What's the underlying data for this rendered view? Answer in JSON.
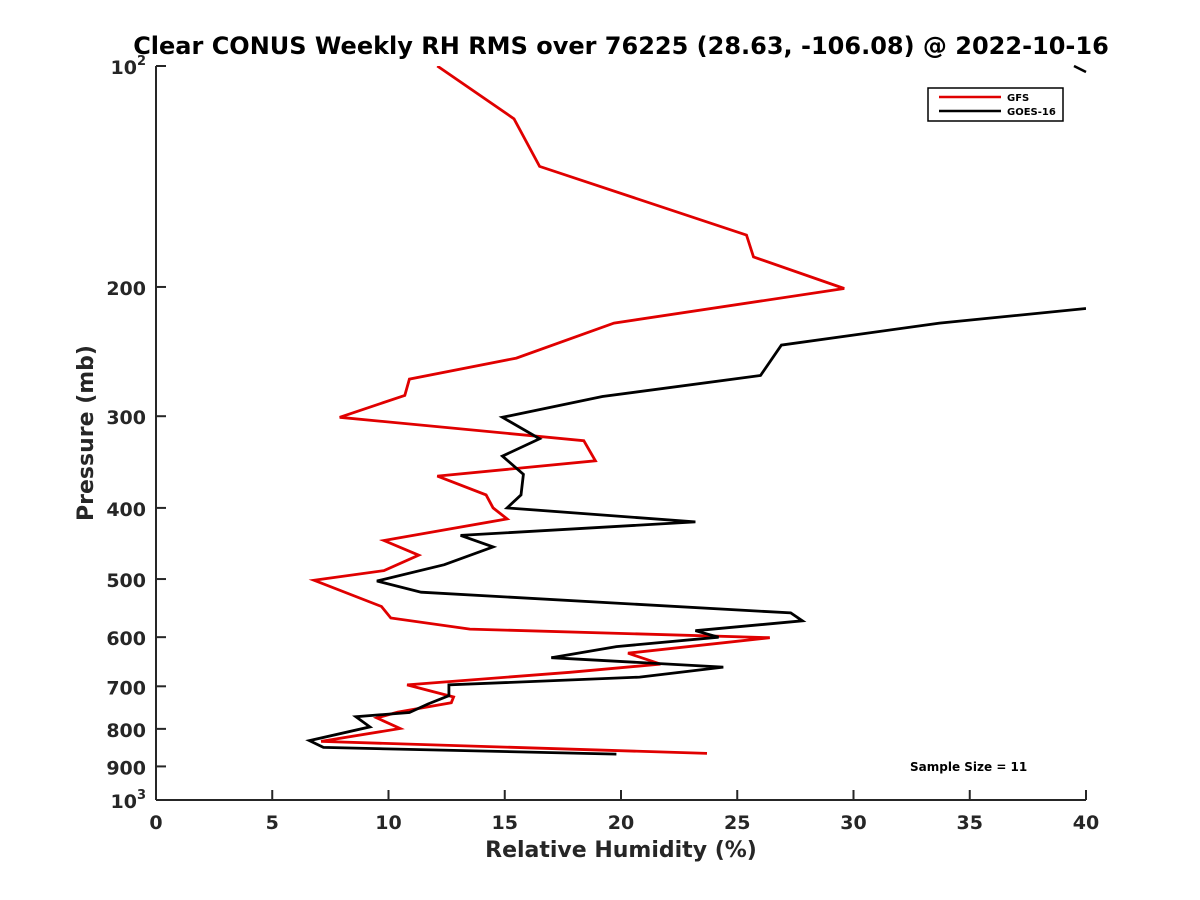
{
  "chart_data": {
    "type": "line",
    "title": "Clear CONUS Weekly RH RMS over 76225 (28.63, -106.08) @ 2022-10-16",
    "xlabel": "Relative Humidity (%)",
    "ylabel": "Pressure (mb)",
    "xlim": [
      0,
      40
    ],
    "ylim": [
      100,
      1000
    ],
    "y_scale": "log",
    "y_reversed": true,
    "x_ticks": [
      0,
      5,
      10,
      15,
      20,
      25,
      30,
      35,
      40
    ],
    "x_tick_labels": [
      "0",
      "5",
      "10",
      "15",
      "20",
      "25",
      "30",
      "35",
      "40"
    ],
    "y_ticks": [
      100,
      200,
      300,
      400,
      500,
      600,
      700,
      800,
      900,
      1000
    ],
    "y_tick_labels": [
      {
        "base": "10",
        "exp": "2"
      },
      {
        "base": "200",
        "exp": ""
      },
      {
        "base": "300",
        "exp": ""
      },
      {
        "base": "400",
        "exp": ""
      },
      {
        "base": "500",
        "exp": ""
      },
      {
        "base": "600",
        "exp": ""
      },
      {
        "base": "700",
        "exp": ""
      },
      {
        "base": "800",
        "exp": ""
      },
      {
        "base": "900",
        "exp": ""
      },
      {
        "base": "10",
        "exp": "3"
      }
    ],
    "grid": false,
    "legend_position": "top-right",
    "series": [
      {
        "name": "GFS",
        "color": "#e00000",
        "points": [
          [
            12.1,
            100
          ],
          [
            15.4,
            118
          ],
          [
            16.5,
            137
          ],
          [
            25.4,
            170
          ],
          [
            25.7,
            182
          ],
          [
            29.6,
            201
          ],
          [
            19.7,
            224
          ],
          [
            15.5,
            250
          ],
          [
            10.9,
            267
          ],
          [
            10.7,
            281
          ],
          [
            7.9,
            301
          ],
          [
            18.4,
            324
          ],
          [
            18.9,
            345
          ],
          [
            12.1,
            362
          ],
          [
            14.2,
            384
          ],
          [
            14.5,
            400
          ],
          [
            15.1,
            414
          ],
          [
            9.8,
            443
          ],
          [
            11.3,
            464
          ],
          [
            9.8,
            487
          ],
          [
            6.8,
            502
          ],
          [
            9.7,
            545
          ],
          [
            10.1,
            565
          ],
          [
            13.5,
            585
          ],
          [
            26.4,
            601
          ],
          [
            20.3,
            631
          ],
          [
            21.7,
            653
          ],
          [
            17.8,
            670
          ],
          [
            10.8,
            697
          ],
          [
            12.8,
            724
          ],
          [
            12.7,
            737
          ],
          [
            10.4,
            759
          ],
          [
            9.5,
            773
          ],
          [
            10.5,
            799
          ],
          [
            7.1,
            832
          ],
          [
            23.7,
            864
          ]
        ]
      },
      {
        "name": "GOES-16",
        "color": "#000000",
        "points": [
          [
            40.0,
            214
          ],
          [
            33.7,
            224
          ],
          [
            26.9,
            240
          ],
          [
            26.0,
            264
          ],
          [
            19.2,
            282
          ],
          [
            14.9,
            301
          ],
          [
            16.5,
            322
          ],
          [
            14.9,
            340
          ],
          [
            15.8,
            360
          ],
          [
            15.7,
            384
          ],
          [
            15.1,
            400
          ],
          [
            23.2,
            418
          ],
          [
            13.1,
            436
          ],
          [
            14.5,
            452
          ],
          [
            12.4,
            478
          ],
          [
            9.5,
            503
          ],
          [
            11.4,
            521
          ],
          [
            27.3,
            556
          ],
          [
            27.8,
            570
          ],
          [
            23.2,
            588
          ],
          [
            24.2,
            600
          ],
          [
            19.8,
            618
          ],
          [
            17.0,
            640
          ],
          [
            24.4,
            659
          ],
          [
            20.8,
            680
          ],
          [
            12.6,
            697
          ],
          [
            12.6,
            721
          ],
          [
            11.7,
            740
          ],
          [
            10.9,
            760
          ],
          [
            8.6,
            770
          ],
          [
            9.2,
            795
          ],
          [
            6.6,
            830
          ],
          [
            7.2,
            848
          ],
          [
            19.8,
            866
          ]
        ]
      }
    ],
    "annotations": [
      "Sample Size = 11"
    ]
  }
}
